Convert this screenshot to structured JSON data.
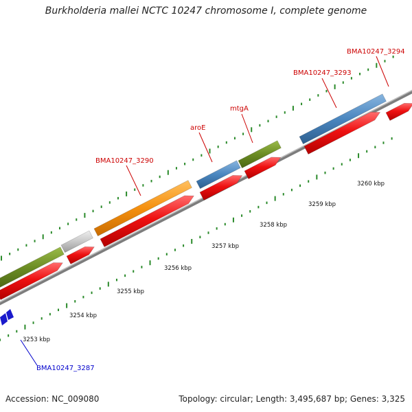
{
  "title": "Burkholderia mallei NCTC 10247 chromosome I, complete genome",
  "footer": {
    "accession": "Accession: NC_009080",
    "topology": "Topology: circular; Length: 3,495,687 bp; Genes: 3,325"
  },
  "colors": {
    "label_red": "#cc0000",
    "label_blue": "#0000cc",
    "backbone": "#9a9a9a",
    "tick_green": "#2a8a2a",
    "cds_red": "#ee1111",
    "gene_orange": "#f5900f",
    "gene_blue": "#4a86bf",
    "gene_olive": "#6b8c23",
    "gene_gray": "#c8c8c8",
    "gene_darkblue": "#1a1acc"
  },
  "scale_labels": [
    "3253 kbp",
    "3254 kbp",
    "3255 kbp",
    "3256 kbp",
    "3257 kbp",
    "3258 kbp",
    "3259 kbp",
    "3260 kbp"
  ],
  "gene_labels": [
    {
      "text": "BMA10247_3287",
      "color": "blue"
    },
    {
      "text": "BMA10247_3290",
      "color": "red"
    },
    {
      "text": "aroE",
      "color": "red"
    },
    {
      "text": "mtgA",
      "color": "red"
    },
    {
      "text": "BMA10247_3293",
      "color": "red"
    },
    {
      "text": "BMA10247_3294",
      "color": "red"
    }
  ]
}
